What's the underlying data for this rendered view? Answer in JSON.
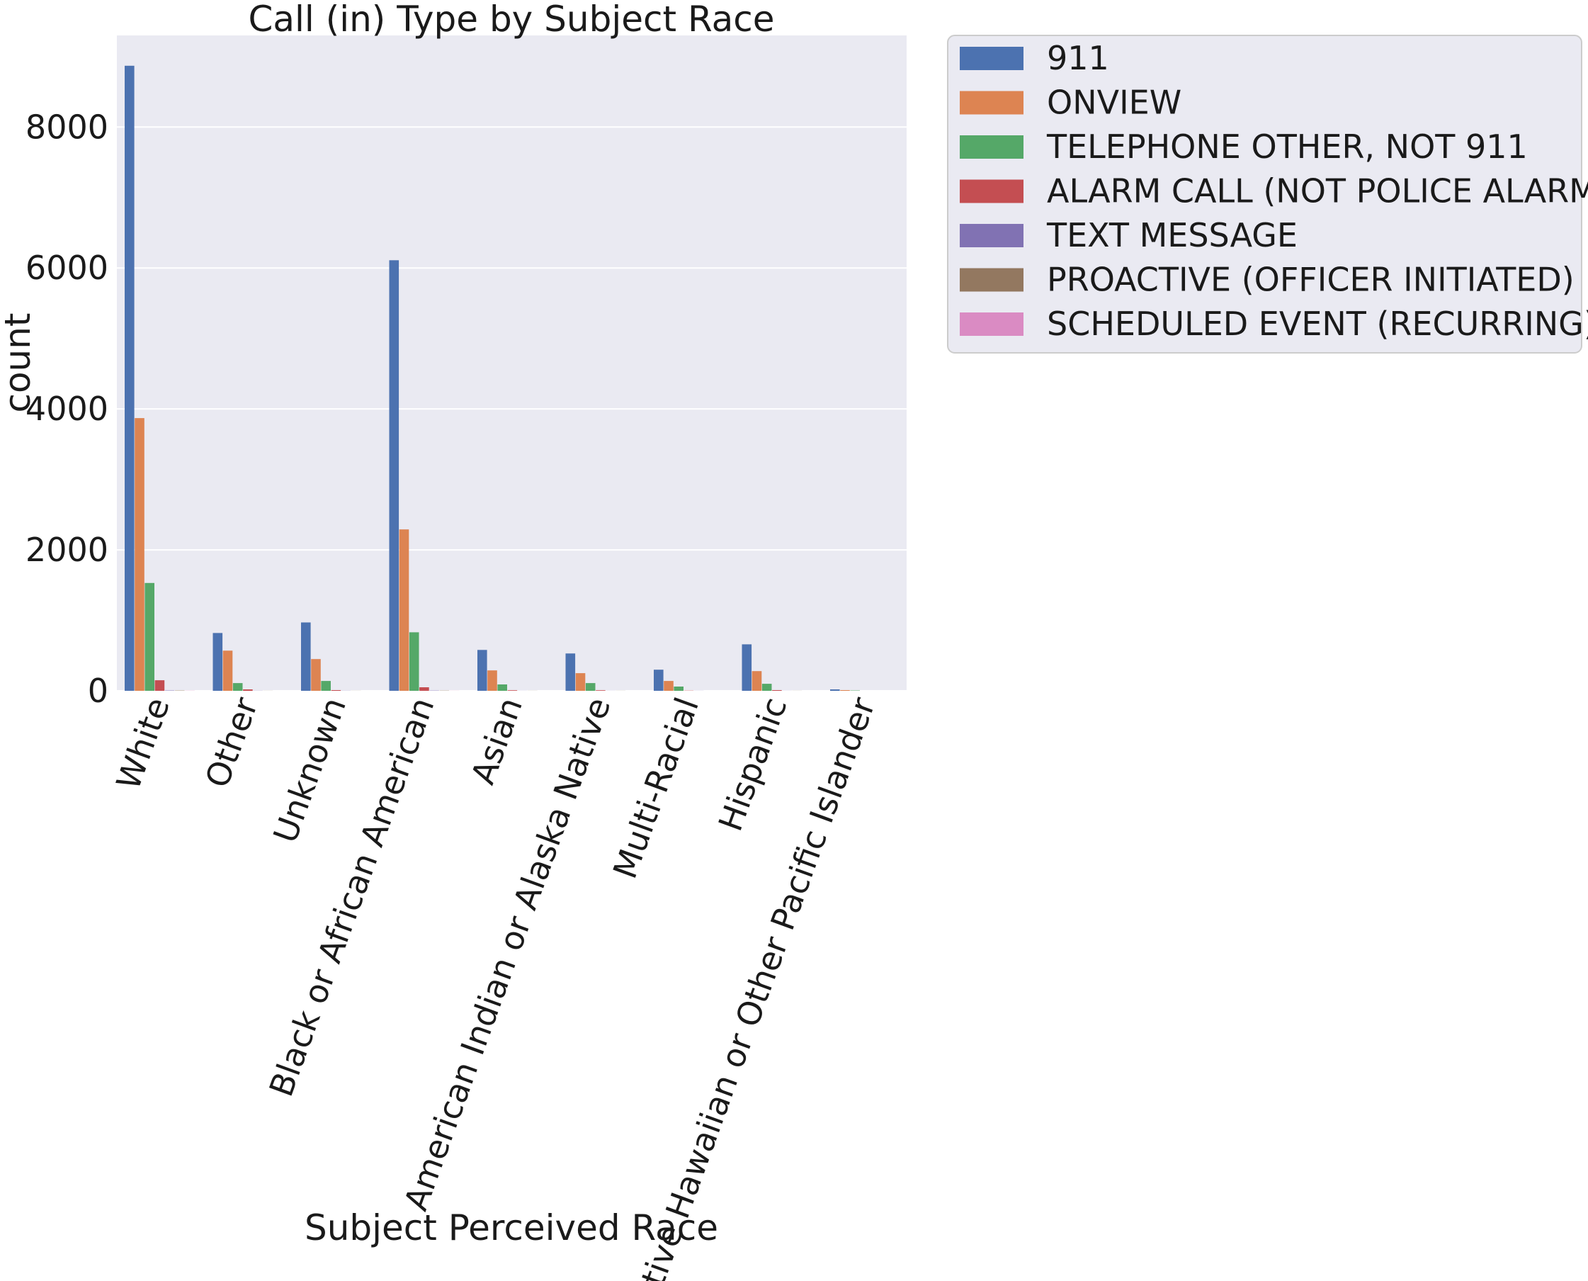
{
  "chart_data": {
    "type": "bar",
    "title": "Call (in) Type by Subject Race",
    "xlabel": "Subject Perceived Race",
    "ylabel": "count",
    "ylim": [
      0,
      9300
    ],
    "yticks": [
      0,
      2000,
      4000,
      6000,
      8000
    ],
    "grid": true,
    "legend_position": "outside-right",
    "categories": [
      "White",
      "Other",
      "Unknown",
      "Black or African American",
      "Asian",
      "American Indian or Alaska Native",
      "Multi-Racial",
      "Hispanic",
      "Native Hawaiian or Other Pacific Islander"
    ],
    "series": [
      {
        "name": "911",
        "color": "#4c72b0",
        "values": [
          8870,
          820,
          970,
          6110,
          580,
          530,
          300,
          660,
          20
        ]
      },
      {
        "name": "ONVIEW",
        "color": "#dd8452",
        "values": [
          3870,
          570,
          450,
          2290,
          290,
          250,
          140,
          280,
          10
        ]
      },
      {
        "name": "TELEPHONE OTHER, NOT 911",
        "color": "#55a868",
        "values": [
          1530,
          110,
          140,
          830,
          90,
          110,
          60,
          100,
          5
        ]
      },
      {
        "name": "ALARM CALL (NOT POLICE ALARM)",
        "color": "#c44e52",
        "values": [
          150,
          20,
          10,
          50,
          8,
          8,
          3,
          10,
          0
        ]
      },
      {
        "name": "TEXT MESSAGE",
        "color": "#8172b3",
        "values": [
          5,
          2,
          2,
          4,
          1,
          1,
          1,
          1,
          0
        ]
      },
      {
        "name": "PROACTIVE (OFFICER INITIATED)",
        "color": "#937860",
        "values": [
          4,
          1,
          1,
          3,
          1,
          1,
          0,
          1,
          0
        ]
      },
      {
        "name": "SCHEDULED EVENT (RECURRING)",
        "color": "#da8bc3",
        "values": [
          2,
          0,
          0,
          1,
          0,
          0,
          0,
          0,
          0
        ]
      }
    ]
  }
}
